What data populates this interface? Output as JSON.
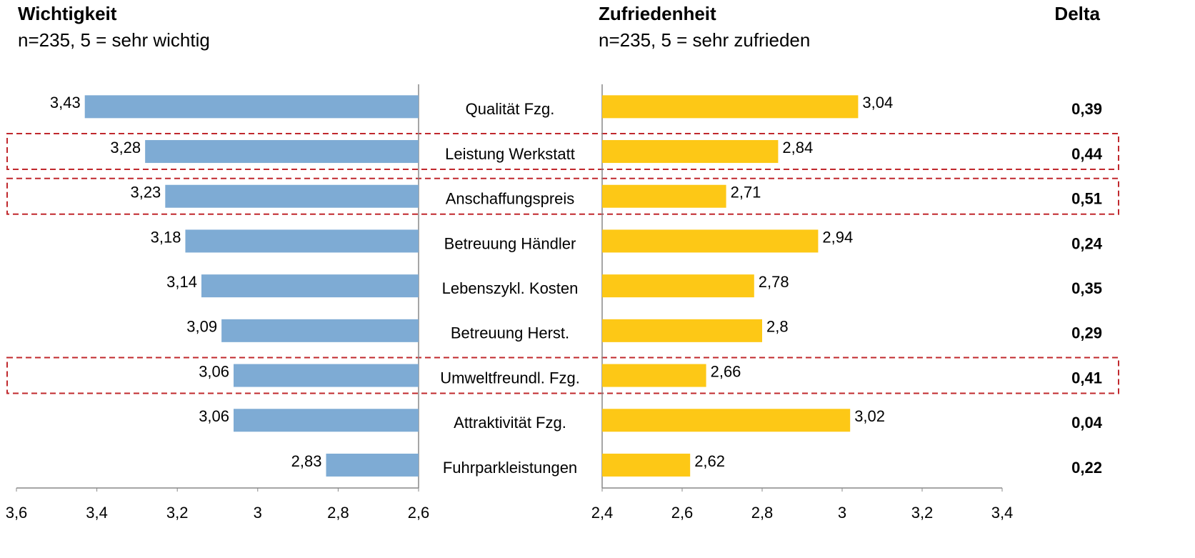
{
  "chart_data": [
    {
      "type": "bar",
      "title": "Wichtigkeit",
      "subtitle": "n=235, 5 = sehr wichtig",
      "categories": [
        "Qualität Fzg.",
        "Leistung Werkstatt",
        "Anschaffungspreis",
        "Betreuung Händler",
        "Lebenszykl. Kosten",
        "Betreuung Herst.",
        "Umweltfreundl. Fzg.",
        "Attraktivität Fzg.",
        "Fuhrparkleistungen"
      ],
      "values": [
        3.43,
        3.28,
        3.23,
        3.18,
        3.14,
        3.09,
        3.06,
        3.06,
        2.83
      ],
      "value_labels": [
        "3,43",
        "3,28",
        "3,23",
        "3,18",
        "3,14",
        "3,09",
        "3,06",
        "3,06",
        "2,83"
      ],
      "color": "#7eabd4",
      "xlim": [
        3.6,
        2.6
      ],
      "xticks": [
        {
          "value": 3.6,
          "label": "3,6"
        },
        {
          "value": 3.4,
          "label": "3,4"
        },
        {
          "value": 3.2,
          "label": "3,2"
        },
        3,
        {
          "value": 2.8,
          "label": "2,8"
        },
        {
          "value": 2.6,
          "label": "2,6"
        }
      ],
      "highlight": [
        1,
        2,
        6
      ]
    },
    {
      "type": "bar",
      "title": "Zufriedenheit",
      "subtitle": "n=235, 5 = sehr zufrieden",
      "values": [
        3.04,
        2.84,
        2.71,
        2.94,
        2.78,
        2.8,
        2.66,
        3.02,
        2.62
      ],
      "value_labels": [
        "3,04",
        "2,84",
        "2,71",
        "2,94",
        "2,78",
        "2,8",
        "2,66",
        "3,02",
        "2,62"
      ],
      "color": "#fdc816",
      "xlim": [
        2.4,
        3.4
      ],
      "xticks": [
        {
          "value": 2.4,
          "label": "2,4"
        },
        {
          "value": 2.6,
          "label": "2,6"
        },
        {
          "value": 2.8,
          "label": "2,8"
        },
        3,
        {
          "value": 3.2,
          "label": "3,2"
        },
        {
          "value": 3.4,
          "label": "3,4"
        }
      ]
    }
  ],
  "delta": {
    "title": "Delta",
    "values": [
      0.39,
      0.44,
      0.51,
      0.24,
      0.35,
      0.29,
      0.41,
      0.04,
      0.22
    ],
    "value_labels": [
      "0,39",
      "0,44",
      "0,51",
      "0,24",
      "0,35",
      "0,29",
      "0,41",
      "0,04",
      "0,22"
    ]
  }
}
